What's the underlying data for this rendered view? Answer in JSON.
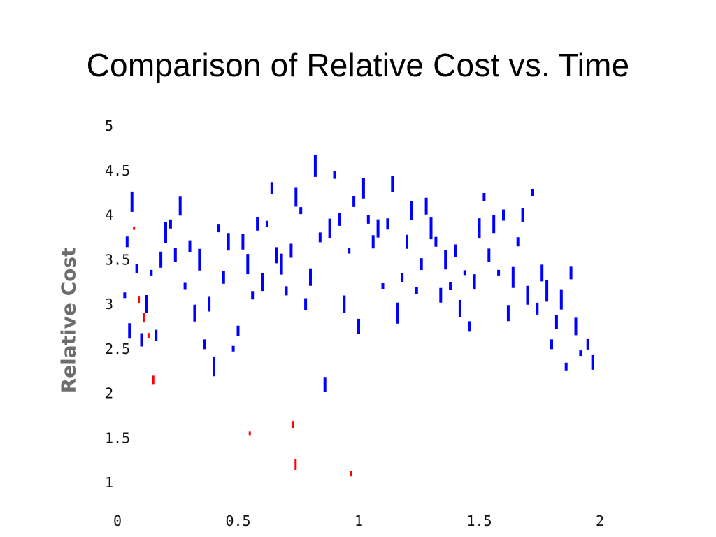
{
  "slide": {
    "title": "Comparison of Relative Cost vs. Time"
  },
  "chart_data": {
    "type": "scatter",
    "title": "Comparison of Relative Cost vs. Time",
    "xlabel": "",
    "ylabel": "Relative Cost",
    "xlim": [
      0,
      2
    ],
    "ylim": [
      1,
      5
    ],
    "x_ticks": [
      "0",
      "0.5",
      "1",
      "1.5",
      "2"
    ],
    "y_ticks": [
      "1",
      "1.5",
      "2",
      "2.5",
      "3",
      "3.5",
      "4",
      "4.5",
      "5"
    ],
    "grid": false,
    "legend": "none",
    "colors": {
      "series_a": "#0000ff",
      "series_b": "#ff0000"
    },
    "series": [
      {
        "color": "#0000ff",
        "points": [
          [
            0.03,
            3.1
          ],
          [
            0.04,
            3.7
          ],
          [
            0.05,
            2.7
          ],
          [
            0.06,
            4.15
          ],
          [
            0.08,
            3.4
          ],
          [
            0.1,
            2.6
          ],
          [
            0.12,
            3.0
          ],
          [
            0.14,
            3.35
          ],
          [
            0.16,
            2.65
          ],
          [
            0.18,
            3.5
          ],
          [
            0.2,
            3.8
          ],
          [
            0.22,
            3.9
          ],
          [
            0.24,
            3.55
          ],
          [
            0.26,
            4.1
          ],
          [
            0.28,
            3.2
          ],
          [
            0.3,
            3.65
          ],
          [
            0.32,
            2.9
          ],
          [
            0.34,
            3.5
          ],
          [
            0.36,
            2.55
          ],
          [
            0.38,
            3.0
          ],
          [
            0.4,
            2.3
          ],
          [
            0.42,
            3.85
          ],
          [
            0.44,
            3.3
          ],
          [
            0.46,
            3.7
          ],
          [
            0.48,
            2.5
          ],
          [
            0.5,
            2.7
          ],
          [
            0.52,
            3.7
          ],
          [
            0.54,
            3.45
          ],
          [
            0.56,
            3.1
          ],
          [
            0.58,
            3.9
          ],
          [
            0.6,
            3.25
          ],
          [
            0.62,
            3.9
          ],
          [
            0.64,
            4.3
          ],
          [
            0.66,
            3.55
          ],
          [
            0.68,
            3.45
          ],
          [
            0.7,
            3.15
          ],
          [
            0.72,
            3.6
          ],
          [
            0.74,
            4.2
          ],
          [
            0.76,
            4.05
          ],
          [
            0.78,
            3.0
          ],
          [
            0.8,
            3.3
          ],
          [
            0.82,
            4.55
          ],
          [
            0.84,
            3.75
          ],
          [
            0.86,
            2.1
          ],
          [
            0.88,
            3.85
          ],
          [
            0.9,
            4.45
          ],
          [
            0.92,
            3.95
          ],
          [
            0.94,
            3.0
          ],
          [
            0.96,
            3.6
          ],
          [
            0.98,
            4.15
          ],
          [
            1.0,
            2.75
          ],
          [
            1.02,
            4.3
          ],
          [
            1.04,
            3.95
          ],
          [
            1.06,
            3.7
          ],
          [
            1.08,
            3.85
          ],
          [
            1.1,
            3.2
          ],
          [
            1.12,
            3.9
          ],
          [
            1.14,
            4.35
          ],
          [
            1.16,
            2.9
          ],
          [
            1.18,
            3.3
          ],
          [
            1.2,
            3.7
          ],
          [
            1.22,
            4.05
          ],
          [
            1.24,
            3.15
          ],
          [
            1.26,
            3.45
          ],
          [
            1.28,
            4.1
          ],
          [
            1.3,
            3.85
          ],
          [
            1.32,
            3.7
          ],
          [
            1.34,
            3.1
          ],
          [
            1.36,
            3.5
          ],
          [
            1.38,
            3.2
          ],
          [
            1.4,
            3.6
          ],
          [
            1.42,
            2.95
          ],
          [
            1.44,
            3.35
          ],
          [
            1.46,
            2.75
          ],
          [
            1.48,
            3.25
          ],
          [
            1.5,
            3.85
          ],
          [
            1.52,
            4.2
          ],
          [
            1.54,
            3.55
          ],
          [
            1.56,
            3.9
          ],
          [
            1.58,
            3.35
          ],
          [
            1.6,
            4.0
          ],
          [
            1.62,
            2.9
          ],
          [
            1.64,
            3.3
          ],
          [
            1.66,
            3.7
          ],
          [
            1.68,
            4.0
          ],
          [
            1.7,
            3.1
          ],
          [
            1.72,
            4.25
          ],
          [
            1.74,
            2.95
          ],
          [
            1.76,
            3.35
          ],
          [
            1.78,
            3.15
          ],
          [
            1.8,
            2.55
          ],
          [
            1.82,
            2.8
          ],
          [
            1.84,
            3.05
          ],
          [
            1.86,
            2.3
          ],
          [
            1.88,
            3.35
          ],
          [
            1.9,
            2.75
          ],
          [
            1.92,
            2.45
          ],
          [
            1.95,
            2.55
          ],
          [
            1.97,
            2.35
          ]
        ]
      },
      {
        "color": "#ff0000",
        "points": [
          [
            0.07,
            3.85
          ],
          [
            0.09,
            3.05
          ],
          [
            0.11,
            2.85
          ],
          [
            0.13,
            2.65
          ],
          [
            0.15,
            2.15
          ],
          [
            0.55,
            1.55
          ],
          [
            0.73,
            1.65
          ],
          [
            0.74,
            1.2
          ],
          [
            0.97,
            1.1
          ]
        ]
      }
    ]
  }
}
